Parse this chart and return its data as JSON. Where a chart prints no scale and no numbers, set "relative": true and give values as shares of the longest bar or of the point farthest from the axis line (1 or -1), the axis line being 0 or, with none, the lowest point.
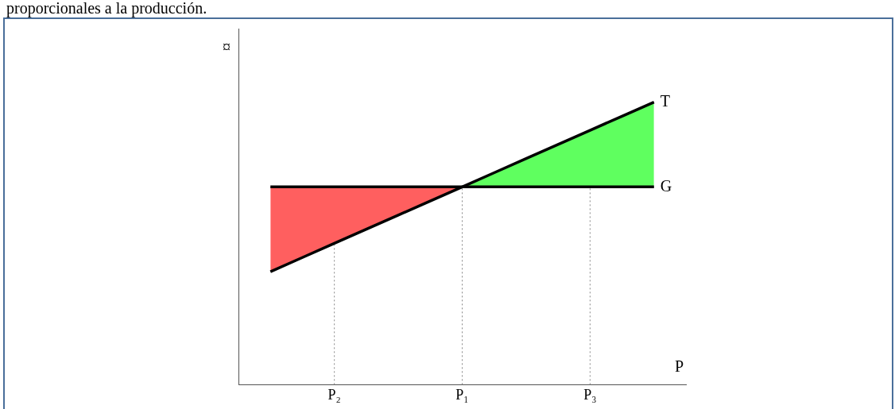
{
  "chart_data": {
    "type": "line",
    "relative": true,
    "xlabel": "P",
    "ylabel": "¤",
    "annotations": [
      "proporcionales a la producción."
    ],
    "categories": [
      null,
      null,
      null,
      "P₂",
      null,
      null,
      null,
      "P₁",
      null,
      null,
      null,
      "P₃",
      null,
      null,
      null
    ],
    "ref_lines": [
      {
        "axis": "x",
        "value": "P₂",
        "label": null,
        "line_style": "dotted",
        "color": "#888888"
      },
      {
        "axis": "x",
        "value": "P₁",
        "label": null,
        "line_style": "dotted",
        "color": "#888888"
      },
      {
        "axis": "x",
        "value": "P₃",
        "label": null,
        "line_style": "dotted",
        "color": "#888888"
      }
    ],
    "grid": false,
    "legend": false,
    "marker": "none",
    "line_style": "solid",
    "series": [
      {
        "type": "area",
        "color": "#ff5f5f",
        "values": [
          null,
          0.7,
          0.7,
          0.7,
          0.7,
          0.7,
          0.7,
          0.7,
          null,
          null,
          null,
          null,
          null,
          null,
          null
        ]
      },
      {
        "type": "area",
        "color": "#5fff5f",
        "values": [
          null,
          null,
          null,
          null,
          null,
          null,
          null,
          0.7,
          0.75,
          0.8,
          0.85,
          0.9,
          0.95,
          1,
          null
        ]
      },
      {
        "name": "T",
        "color": "#000000",
        "values": [
          null,
          0.4,
          0.45,
          0.5,
          0.55,
          0.6,
          0.65,
          0.7,
          0.75,
          0.8,
          0.85,
          0.9,
          0.95,
          1,
          null
        ]
      },
      {
        "name": "G",
        "color": "#000000",
        "values": [
          null,
          0.7,
          0.7,
          0.7,
          0.7,
          0.7,
          0.7,
          0.7,
          0.7,
          0.7,
          0.7,
          0.7,
          0.7,
          0.7,
          null
        ]
      }
    ]
  }
}
